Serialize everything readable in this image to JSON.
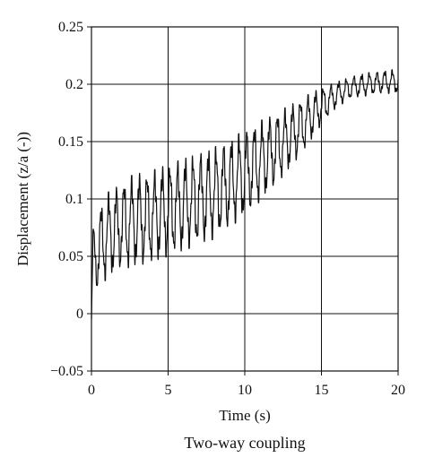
{
  "chart_data": {
    "type": "line",
    "title": "",
    "caption": "Two-way coupling",
    "xlabel": "Time (s)",
    "ylabel": "Displacement (z/a (-))",
    "xlim": [
      0,
      20
    ],
    "ylim": [
      -0.05,
      0.25
    ],
    "x_ticks": [
      "0",
      "5",
      "10",
      "15",
      "20"
    ],
    "y_ticks": [
      "0.25",
      "0.2",
      "0.15",
      "0.1",
      "0.05",
      "0",
      "−0.05"
    ],
    "grid": true,
    "legend": "none",
    "line_color": "#111111",
    "oscillation_period_s": 0.5,
    "series": [
      {
        "x": [
          0,
          0.1,
          0.3,
          0.6,
          1.0,
          1.5,
          2.0,
          2.5,
          3.0,
          4.0,
          5.0,
          6.0,
          7.0,
          8.0,
          9.0,
          10.0,
          11.0,
          12.0,
          13.0,
          14.0,
          15.0,
          16.0,
          17.0,
          18.0,
          19.0,
          20.0
        ],
        "upper": [
          -0.005,
          0.075,
          0.075,
          0.095,
          0.105,
          0.11,
          0.115,
          0.12,
          0.122,
          0.125,
          0.13,
          0.135,
          0.14,
          0.145,
          0.152,
          0.16,
          0.168,
          0.175,
          0.182,
          0.19,
          0.197,
          0.202,
          0.207,
          0.21,
          0.212,
          0.213
        ],
        "lower": [
          -0.005,
          0.04,
          0.02,
          0.025,
          0.03,
          0.035,
          0.04,
          0.04,
          0.042,
          0.045,
          0.05,
          0.055,
          0.06,
          0.065,
          0.075,
          0.085,
          0.098,
          0.112,
          0.128,
          0.145,
          0.165,
          0.18,
          0.188,
          0.19,
          0.192,
          0.192
        ]
      }
    ]
  }
}
